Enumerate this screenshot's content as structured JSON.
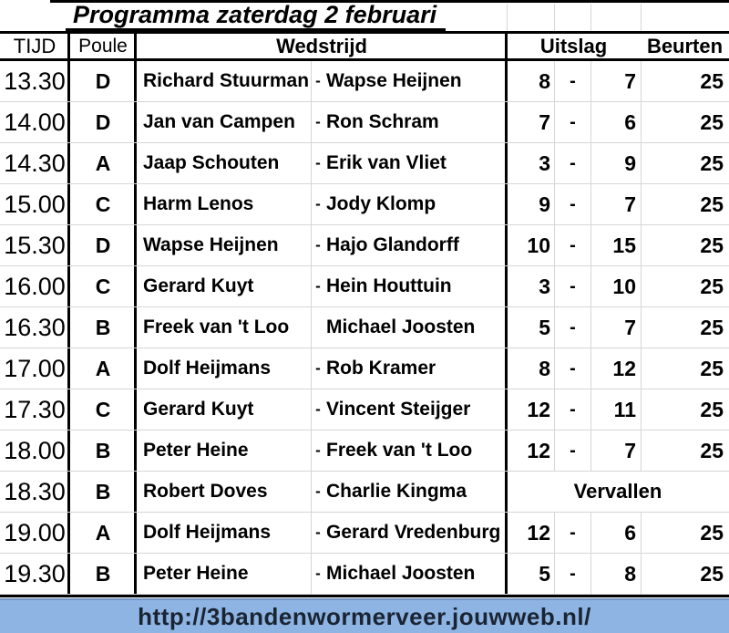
{
  "title": "Programma zaterdag 2 februari",
  "header": {
    "tijd": "TIJD",
    "poule": "Poule",
    "wedstrijd": "Wedstrijd",
    "uitslag": "Uitslag",
    "beurten": "Beurten"
  },
  "rows": [
    {
      "tijd": "13.30",
      "poule": "D",
      "p1": "Richard Stuurman",
      "sep": "-",
      "p2": "Wapse Heijnen",
      "s1": "8",
      "dash": "-",
      "s2": "7",
      "beurten": "25"
    },
    {
      "tijd": "14.00",
      "poule": "D",
      "p1": "Jan van Campen",
      "sep": "-",
      "p2": "Ron Schram",
      "s1": "7",
      "dash": "-",
      "s2": "6",
      "beurten": "25"
    },
    {
      "tijd": "14.30",
      "poule": "A",
      "p1": "Jaap Schouten",
      "sep": "-",
      "p2": "Erik van Vliet",
      "s1": "3",
      "dash": "-",
      "s2": "9",
      "beurten": "25"
    },
    {
      "tijd": "15.00",
      "poule": "C",
      "p1": "Harm Lenos",
      "sep": "-",
      "p2": "Jody Klomp",
      "s1": "9",
      "dash": "-",
      "s2": "7",
      "beurten": "25"
    },
    {
      "tijd": "15.30",
      "poule": "D",
      "p1": "Wapse Heijnen",
      "sep": "-",
      "p2": "Hajo Glandorff",
      "s1": "10",
      "dash": "-",
      "s2": "15",
      "beurten": "25"
    },
    {
      "tijd": "16.00",
      "poule": "C",
      "p1": "Gerard Kuyt",
      "sep": "-",
      "p2": "Hein Houttuin",
      "s1": "3",
      "dash": "-",
      "s2": "10",
      "beurten": "25"
    },
    {
      "tijd": "16.30",
      "poule": "B",
      "p1": "Freek van 't Loo",
      "sep": "",
      "p2": "Michael Joosten",
      "s1": "5",
      "dash": "-",
      "s2": "7",
      "beurten": "25"
    },
    {
      "tijd": "17.00",
      "poule": "A",
      "p1": "Dolf Heijmans",
      "sep": "-",
      "p2": "Rob Kramer",
      "s1": "8",
      "dash": "-",
      "s2": "12",
      "beurten": "25"
    },
    {
      "tijd": "17.30",
      "poule": "C",
      "p1": "Gerard Kuyt",
      "sep": "-",
      "p2": "Vincent Steijger",
      "s1": "12",
      "dash": "-",
      "s2": "11",
      "beurten": "25"
    },
    {
      "tijd": "18.00",
      "poule": "B",
      "p1": "Peter Heine",
      "sep": "-",
      "p2": "Freek van 't Loo",
      "s1": "12",
      "dash": "-",
      "s2": "7",
      "beurten": "25"
    },
    {
      "tijd": "18.30",
      "poule": "B",
      "p1": "Robert Doves",
      "sep": "-",
      "p2": "Charlie Kingma",
      "status": "Vervallen"
    },
    {
      "tijd": "19.00",
      "poule": "A",
      "p1": "Dolf Heijmans",
      "sep": "-",
      "p2": "Gerard Vredenburg",
      "s1": "12",
      "dash": "-",
      "s2": "6",
      "beurten": "25"
    },
    {
      "tijd": "19.30",
      "poule": "B",
      "p1": "Peter Heine",
      "sep": "-",
      "p2": "Michael Joosten",
      "s1": "5",
      "dash": "-",
      "s2": "8",
      "beurten": "25"
    }
  ],
  "footer": {
    "url": "http://3bandenwormerveer.jouwweb.nl/"
  },
  "colors": {
    "border": "#000000",
    "gridline": "#D6D6D6",
    "footer_bg": "#8DB4E2",
    "footer_border": "#7094C4",
    "url_text": "#1A2433"
  }
}
